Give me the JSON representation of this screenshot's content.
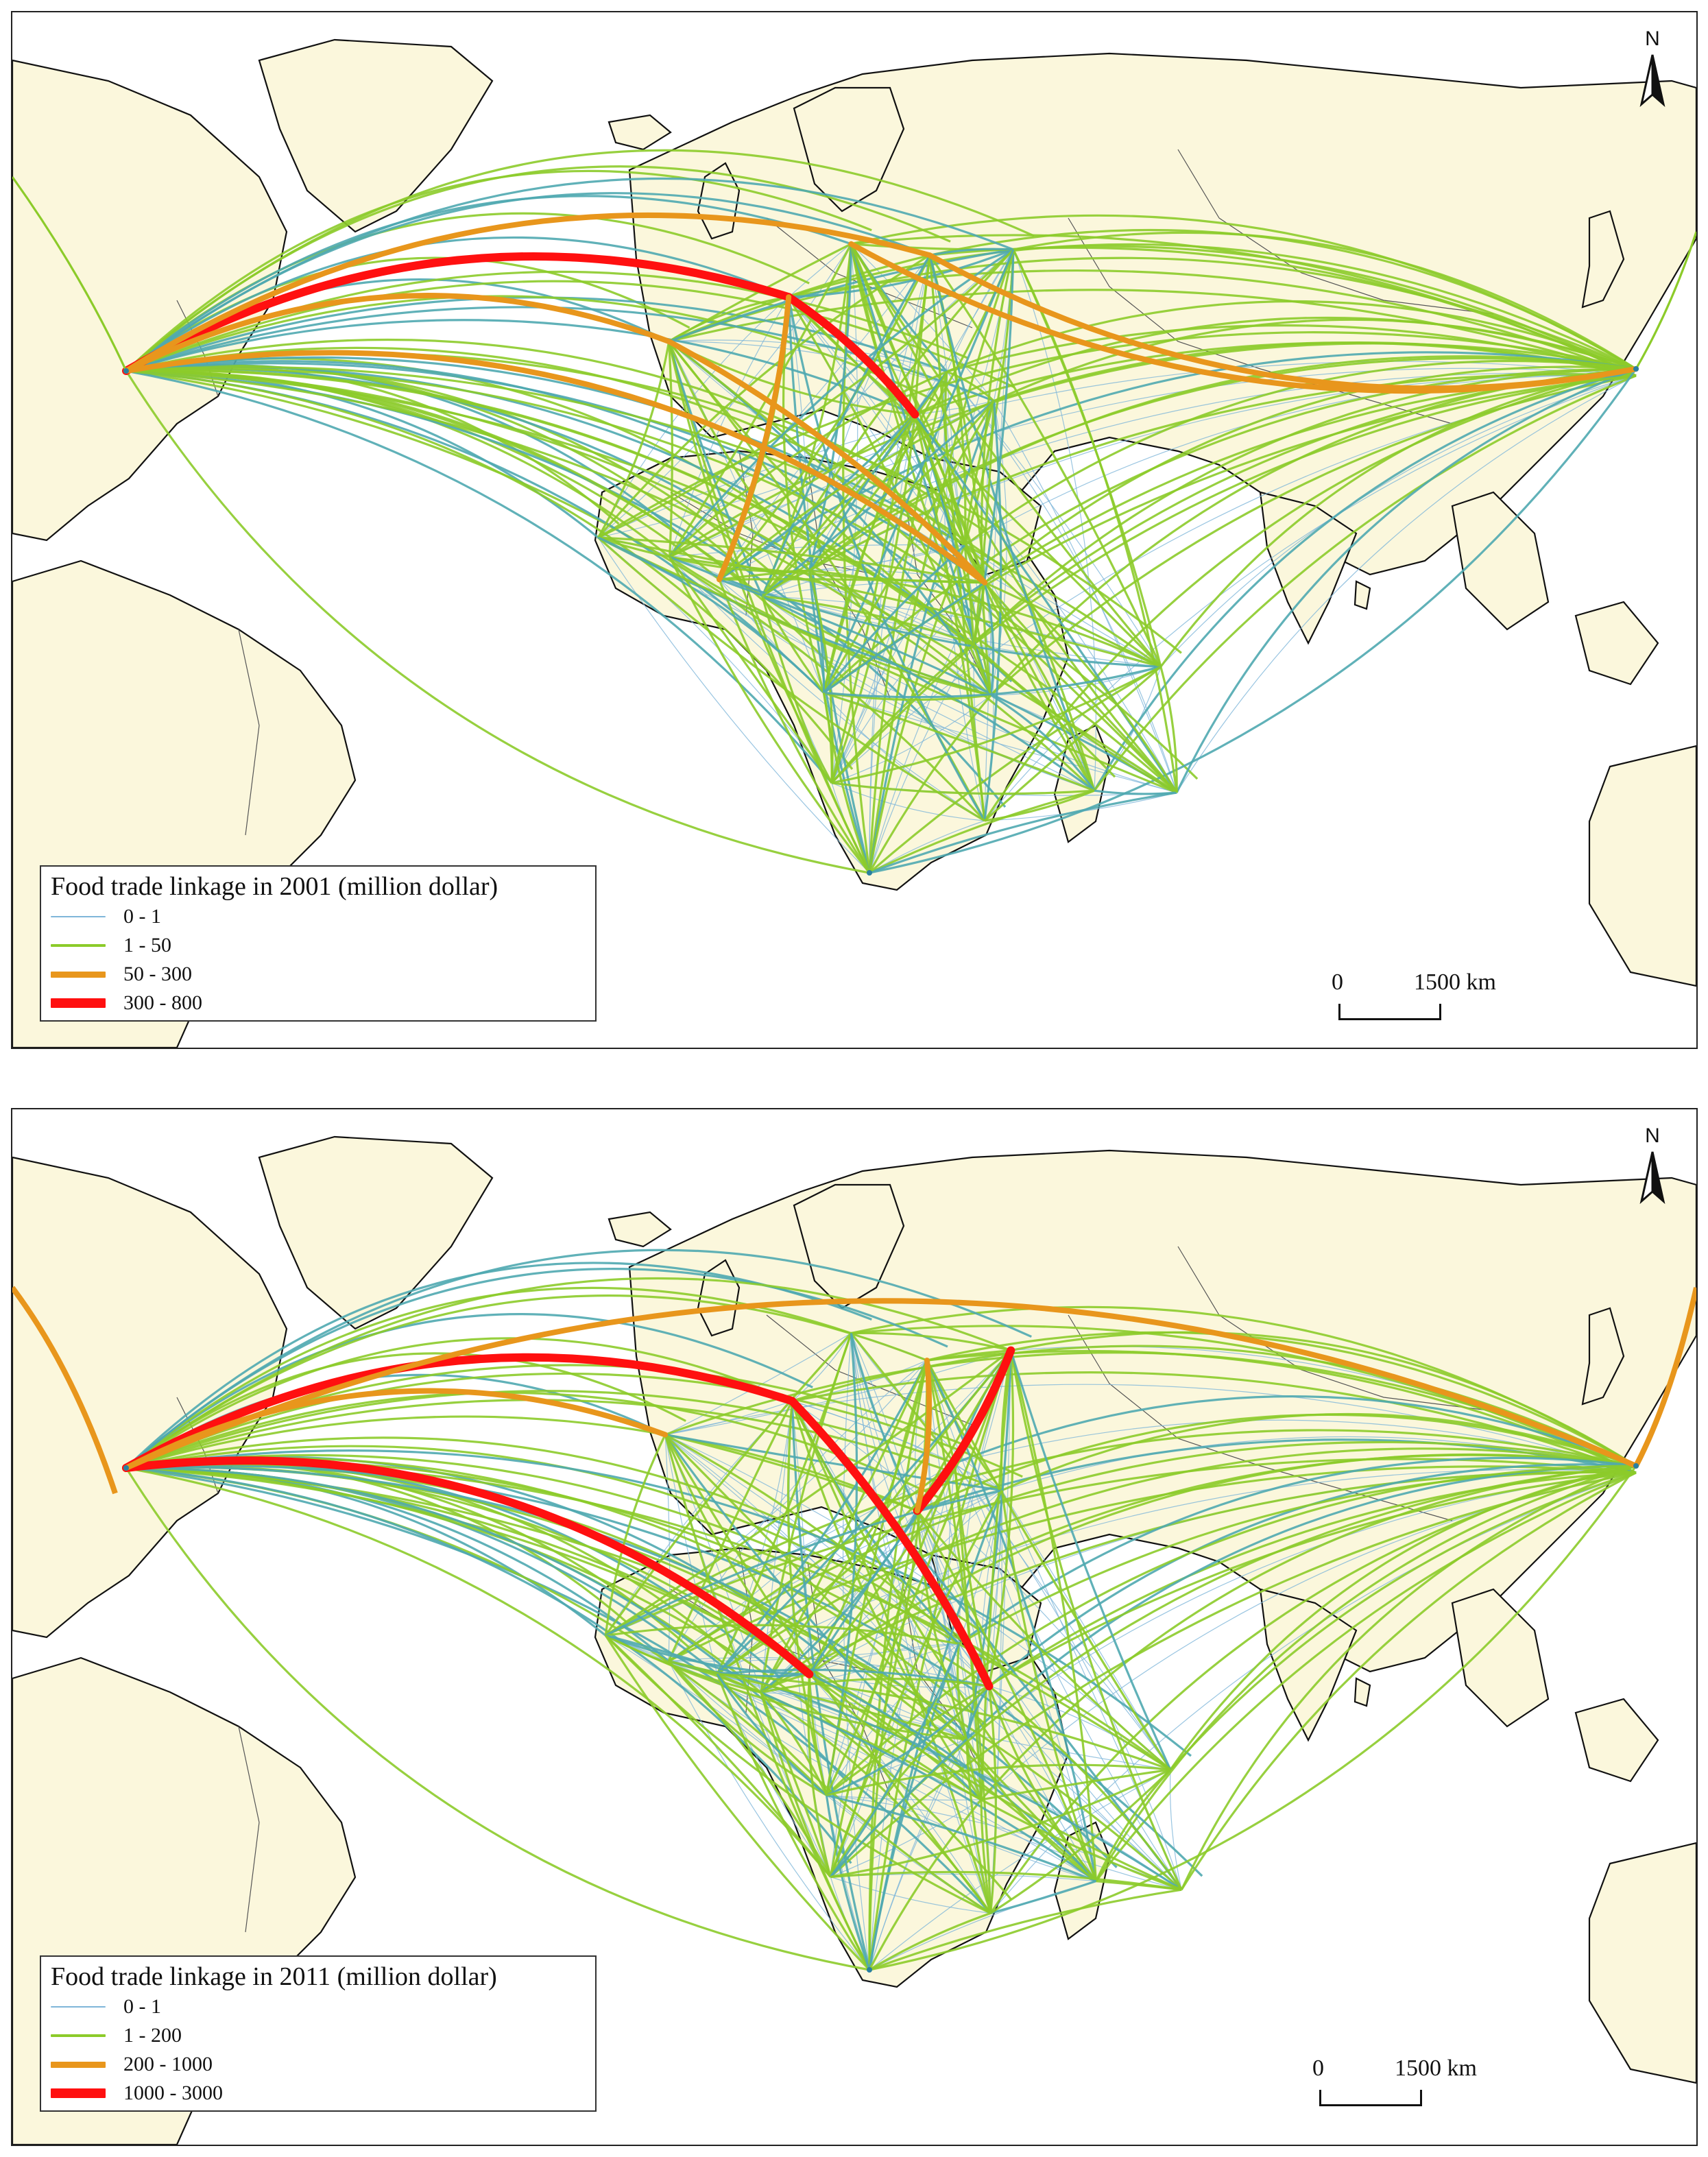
{
  "colors": {
    "ocean": "#ffffff",
    "land": "#fbf7dc",
    "coast": "#111111",
    "border": "#555555",
    "class1": "#7fb6d9",
    "class2": "#8ccb2a",
    "class3": "#e8961c",
    "class4": "#ff1010"
  },
  "maps": [
    {
      "legend": {
        "title": "Food trade linkage  in 2001 (million dollar)",
        "classes": [
          {
            "label": "0 - 1"
          },
          {
            "label": "1 - 50"
          },
          {
            "label": "50 - 300"
          },
          {
            "label": "300 - 800"
          }
        ]
      },
      "north_label": "N",
      "scale": {
        "zero": "0",
        "distance": "1500 km"
      }
    },
    {
      "legend": {
        "title": "Food trade linkage  in 2011 (million dollar)",
        "classes": [
          {
            "label": "0 - 1"
          },
          {
            "label": "1 - 200"
          },
          {
            "label": "200 - 1000"
          },
          {
            "label": "1000 - 3000"
          }
        ]
      },
      "north_label": "N",
      "scale": {
        "zero": "0",
        "distance": "1500 km"
      }
    }
  ]
}
